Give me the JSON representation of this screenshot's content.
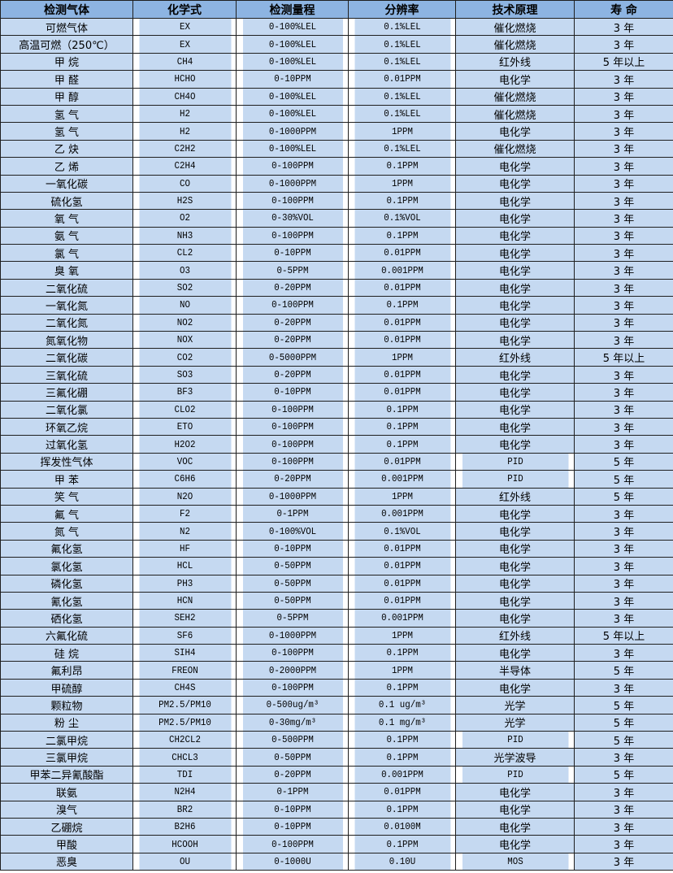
{
  "table": {
    "headers": [
      "检测气体",
      "化学式",
      "检测量程",
      "分辨率",
      "技术原理",
      "寿 命"
    ],
    "rows": [
      [
        "可燃气体",
        "EX",
        "0-100%LEL",
        "0.1%LEL",
        "催化燃烧",
        "3 年"
      ],
      [
        "高温可燃（250℃）",
        "EX",
        "0-100%LEL",
        "0.1%LEL",
        "催化燃烧",
        "3 年"
      ],
      [
        "甲 烷",
        "CH4",
        "0-100%LEL",
        "0.1%LEL",
        "红外线",
        "5 年以上"
      ],
      [
        "甲 醛",
        "HCHO",
        "0-10PPM",
        "0.01PPM",
        "电化学",
        "3 年"
      ],
      [
        "甲 醇",
        "CH4O",
        "0-100%LEL",
        "0.1%LEL",
        "催化燃烧",
        "3 年"
      ],
      [
        "氢 气",
        "H2",
        "0-100%LEL",
        "0.1%LEL",
        "催化燃烧",
        "3 年"
      ],
      [
        "氢 气",
        "H2",
        "0-1000PPM",
        "1PPM",
        "电化学",
        "3 年"
      ],
      [
        "乙 炔",
        "C2H2",
        "0-100%LEL",
        "0.1%LEL",
        "催化燃烧",
        "3 年"
      ],
      [
        "乙 烯",
        "C2H4",
        "0-100PPM",
        "0.1PPM",
        "电化学",
        "3 年"
      ],
      [
        "一氧化碳",
        "CO",
        "0-1000PPM",
        "1PPM",
        "电化学",
        "3 年"
      ],
      [
        "硫化氢",
        "H2S",
        "0-100PPM",
        "0.1PPM",
        "电化学",
        "3 年"
      ],
      [
        "氧 气",
        "O2",
        "0-30%VOL",
        "0.1%VOL",
        "电化学",
        "3 年"
      ],
      [
        "氨 气",
        "NH3",
        "0-100PPM",
        "0.1PPM",
        "电化学",
        "3 年"
      ],
      [
        "氯 气",
        "CL2",
        "0-10PPM",
        "0.01PPM",
        "电化学",
        "3 年"
      ],
      [
        "臭 氧",
        "O3",
        "0-5PPM",
        "0.001PPM",
        "电化学",
        "3 年"
      ],
      [
        "二氧化硫",
        "SO2",
        "0-20PPM",
        "0.01PPM",
        "电化学",
        "3 年"
      ],
      [
        "一氧化氮",
        "NO",
        "0-100PPM",
        "0.1PPM",
        "电化学",
        "3 年"
      ],
      [
        "二氧化氮",
        "NO2",
        "0-20PPM",
        "0.01PPM",
        "电化学",
        "3 年"
      ],
      [
        "氮氧化物",
        "NOX",
        "0-20PPM",
        "0.01PPM",
        "电化学",
        "3 年"
      ],
      [
        "二氧化碳",
        "CO2",
        "0-5000PPM",
        "1PPM",
        "红外线",
        "5 年以上"
      ],
      [
        "三氧化硫",
        "SO3",
        "0-20PPM",
        "0.01PPM",
        "电化学",
        "3 年"
      ],
      [
        "三氟化硼",
        "BF3",
        "0-10PPM",
        "0.01PPM",
        "电化学",
        "3 年"
      ],
      [
        "二氧化氯",
        "CLO2",
        "0-100PPM",
        "0.1PPM",
        "电化学",
        "3 年"
      ],
      [
        "环氧乙烷",
        "ETO",
        "0-100PPM",
        "0.1PPM",
        "电化学",
        "3 年"
      ],
      [
        "过氧化氢",
        "H2O2",
        "0-100PPM",
        "0.1PPM",
        "电化学",
        "3 年"
      ],
      [
        "挥发性气体",
        "VOC",
        "0-100PPM",
        "0.01PPM",
        "PID",
        "5 年"
      ],
      [
        "甲 苯",
        "C6H6",
        "0-20PPM",
        "0.001PPM",
        "PID",
        "5 年"
      ],
      [
        "笑 气",
        "N2O",
        "0-1000PPM",
        "1PPM",
        "红外线",
        "5 年"
      ],
      [
        "氟 气",
        "F2",
        "0-1PPM",
        "0.001PPM",
        "电化学",
        "3 年"
      ],
      [
        "氮 气",
        "N2",
        "0-100%VOL",
        "0.1%VOL",
        "电化学",
        "3 年"
      ],
      [
        "氟化氢",
        "HF",
        "0-10PPM",
        "0.01PPM",
        "电化学",
        "3 年"
      ],
      [
        "氯化氢",
        "HCL",
        "0-50PPM",
        "0.01PPM",
        "电化学",
        "3 年"
      ],
      [
        "磷化氢",
        "PH3",
        "0-50PPM",
        "0.01PPM",
        "电化学",
        "3 年"
      ],
      [
        "氰化氢",
        "HCN",
        "0-50PPM",
        "0.01PPM",
        "电化学",
        "3 年"
      ],
      [
        "硒化氢",
        "SEH2",
        "0-5PPM",
        "0.001PPM",
        "电化学",
        "3 年"
      ],
      [
        "六氟化硫",
        "SF6",
        "0-1000PPM",
        "1PPM",
        "红外线",
        "5 年以上"
      ],
      [
        "硅 烷",
        "SIH4",
        "0-100PPM",
        "0.1PPM",
        "电化学",
        "3 年"
      ],
      [
        "氟利昂",
        "FREON",
        "0-2000PPM",
        "1PPM",
        "半导体",
        "5 年"
      ],
      [
        "甲硫醇",
        "CH4S",
        "0-100PPM",
        "0.1PPM",
        "电化学",
        "3 年"
      ],
      [
        "颗粒物",
        "PM2.5/PM10",
        "0-500ug/m³",
        "0.1 ug/m³",
        "光学",
        "5 年"
      ],
      [
        "粉 尘",
        "PM2.5/PM10",
        "0-30mg/m³",
        "0.1 mg/m³",
        "光学",
        "5 年"
      ],
      [
        "二氯甲烷",
        "CH2CL2",
        "0-500PPM",
        "0.1PPM",
        "PID",
        "5 年"
      ],
      [
        "三氯甲烷",
        "CHCL3",
        "0-50PPM",
        "0.1PPM",
        "光学波导",
        "3 年"
      ],
      [
        "甲苯二异氰酸酯",
        "TDI",
        "0-20PPM",
        "0.001PPM",
        "PID",
        "5 年"
      ],
      [
        "联氨",
        "N2H4",
        "0-1PPM",
        "0.01PPM",
        "电化学",
        "3 年"
      ],
      [
        "溴气",
        "BR2",
        "0-10PPM",
        "0.1PPM",
        "电化学",
        "3 年"
      ],
      [
        "乙硼烷",
        "B2H6",
        "0-10PPM",
        "0.0100M",
        "电化学",
        "3 年"
      ],
      [
        "甲酸",
        "HCOOH",
        "0-100PPM",
        "0.1PPM",
        "电化学",
        "3 年"
      ],
      [
        "恶臭",
        "OU",
        "0-1000U",
        "0.10U",
        "MOS",
        "3 年"
      ]
    ]
  },
  "colors": {
    "header_bg": "#8db4e2",
    "cell_bg": "#c5d9f1",
    "border": "#1f1f1f"
  }
}
